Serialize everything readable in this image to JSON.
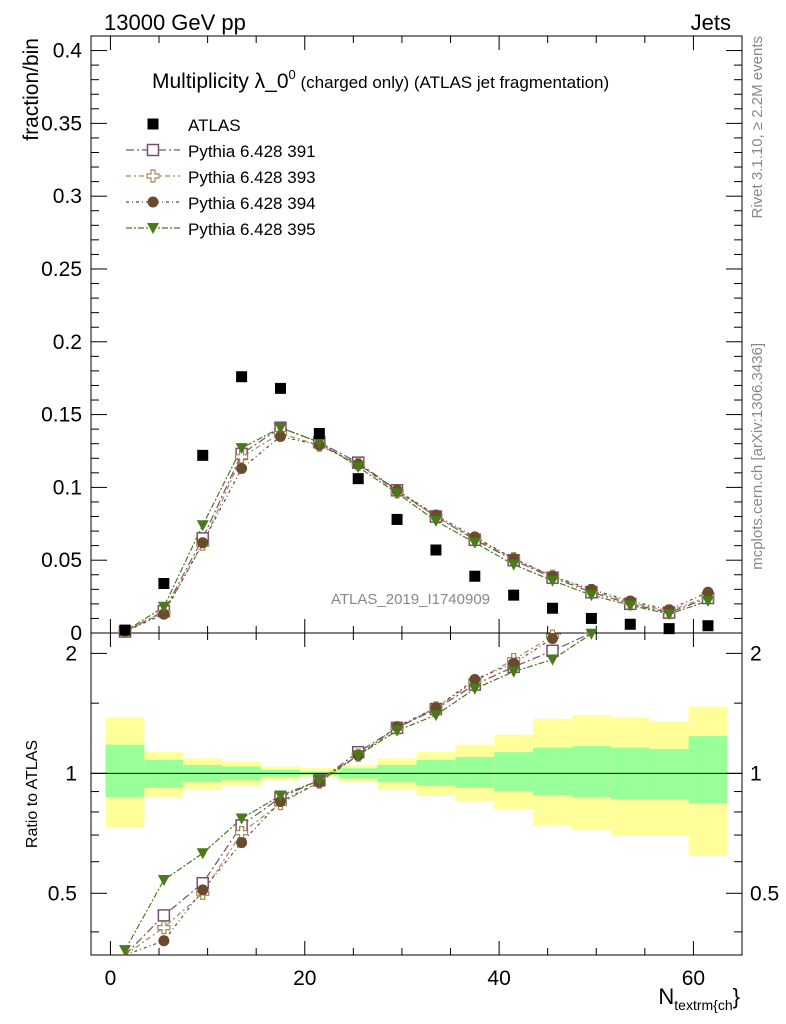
{
  "header": {
    "left": "13000 GeV pp",
    "right": "Jets"
  },
  "side_text": {
    "rivet": "Rivet 3.1.10, ≥ 2.2M events",
    "mcplots": "mcplots.cern.ch [arXiv:1306.3436]"
  },
  "watermark": "ATLAS_2019_I1740909",
  "colors": {
    "data": "#000000",
    "p391": "#7b4f6a",
    "p393": "#9c8a5a",
    "p394": "#6b4a2e",
    "p395": "#4a7a1a",
    "band_inner": "#99ff99",
    "band_outer": "#ffff99"
  },
  "chart_data": {
    "type": "scatter",
    "title_main": "Multiplicity λ_0",
    "title_sup": "0",
    "title_rest": " (charged only) (ATLAS jet fragmentation)",
    "xlabel_main": "N",
    "xlabel_sub": "textrm{ch",
    "xlabel_close": "}",
    "ylabel": "fraction/bin",
    "ratio_ylabel": "Ratio to ATLAS",
    "xlim": [
      -2,
      65
    ],
    "ylim": [
      0,
      0.41
    ],
    "ratio_ylim": [
      0.35,
      2.25
    ],
    "xticks": [
      0,
      20,
      40,
      60
    ],
    "yticks": [
      0,
      0.05,
      0.1,
      0.15,
      0.2,
      0.25,
      0.3,
      0.35,
      0.4
    ],
    "ytick_labels": [
      "0",
      "0.05",
      "0.1",
      "0.15",
      "0.2",
      "0.25",
      "0.3",
      "0.35",
      "0.4"
    ],
    "ratio_yticks": [
      0.5,
      1,
      2
    ],
    "ratio_ytick_labels": [
      "0.5",
      "1",
      "2"
    ],
    "x": [
      1.5,
      5.5,
      9.5,
      13.5,
      17.5,
      21.5,
      25.5,
      29.5,
      33.5,
      37.5,
      41.5,
      45.5,
      49.5,
      53.5,
      57.5,
      61.5
    ],
    "bin_edges": [
      -0.5,
      3.5,
      7.5,
      11.5,
      15.5,
      19.5,
      23.5,
      27.5,
      31.5,
      35.5,
      39.5,
      43.5,
      47.5,
      51.5,
      55.5,
      59.5,
      63.5
    ],
    "data": {
      "name": "ATLAS",
      "values": [
        0.002,
        0.034,
        0.122,
        0.176,
        0.168,
        0.137,
        0.106,
        0.078,
        0.057,
        0.039,
        0.026,
        0.017,
        0.01,
        0.006,
        0.003,
        0.005
      ]
    },
    "series": [
      {
        "name": "Pythia 6.428 391",
        "marker": "open-square",
        "color": "#7b4f6a",
        "values": [
          0.001,
          0.015,
          0.065,
          0.123,
          0.141,
          0.131,
          0.117,
          0.098,
          0.08,
          0.064,
          0.05,
          0.038,
          0.028,
          0.02,
          0.014,
          0.024
        ]
      },
      {
        "name": "Pythia 6.428 393",
        "marker": "open-cross",
        "color": "#9c8a5a",
        "values": [
          0.001,
          0.014,
          0.061,
          0.121,
          0.137,
          0.129,
          0.116,
          0.097,
          0.08,
          0.065,
          0.051,
          0.039,
          0.029,
          0.021,
          0.015,
          0.025
        ]
      },
      {
        "name": "Pythia 6.428 394",
        "marker": "filled-circle",
        "color": "#6b4a2e",
        "values": [
          0.001,
          0.013,
          0.062,
          0.113,
          0.135,
          0.129,
          0.116,
          0.098,
          0.081,
          0.066,
          0.051,
          0.039,
          0.03,
          0.022,
          0.016,
          0.028
        ]
      },
      {
        "name": "Pythia 6.428 395",
        "marker": "filled-triangle-down",
        "color": "#4a7a1a",
        "values": [
          0.001,
          0.018,
          0.074,
          0.127,
          0.141,
          0.131,
          0.114,
          0.096,
          0.077,
          0.062,
          0.047,
          0.036,
          0.026,
          0.019,
          0.013,
          0.022
        ]
      }
    ],
    "ratio_series": [
      {
        "name": "Pythia 6.428 391",
        "values": [
          0.33,
          0.44,
          0.53,
          0.74,
          0.87,
          0.96,
          1.13,
          1.3,
          1.45,
          1.67,
          1.85,
          2.03,
          2.3,
          null,
          null,
          null
        ]
      },
      {
        "name": "Pythia 6.428 393",
        "values": [
          0.3,
          0.41,
          0.5,
          0.71,
          0.84,
          0.95,
          1.11,
          1.3,
          1.46,
          1.7,
          1.93,
          2.21,
          null,
          null,
          null,
          null
        ]
      },
      {
        "name": "Pythia 6.428 394",
        "values": [
          0.3,
          0.38,
          0.51,
          0.67,
          0.85,
          0.95,
          1.11,
          1.31,
          1.46,
          1.72,
          1.89,
          2.18,
          null,
          null,
          null,
          null
        ]
      },
      {
        "name": "Pythia 6.428 395",
        "values": [
          0.36,
          0.54,
          0.63,
          0.77,
          0.88,
          0.96,
          1.11,
          1.28,
          1.4,
          1.63,
          1.8,
          1.93,
          2.24,
          null,
          null,
          null
        ]
      }
    ],
    "band": {
      "inner_lo": [
        0.87,
        0.92,
        0.95,
        0.96,
        0.98,
        0.99,
        0.97,
        0.95,
        0.93,
        0.92,
        0.9,
        0.88,
        0.87,
        0.86,
        0.86,
        0.84
      ],
      "inner_hi": [
        1.18,
        1.08,
        1.05,
        1.04,
        1.02,
        1.01,
        1.03,
        1.05,
        1.08,
        1.1,
        1.13,
        1.16,
        1.17,
        1.16,
        1.15,
        1.24
      ],
      "outer_lo": [
        0.73,
        0.87,
        0.91,
        0.93,
        0.96,
        0.98,
        0.95,
        0.91,
        0.88,
        0.85,
        0.81,
        0.74,
        0.72,
        0.7,
        0.7,
        0.62
      ],
      "outer_hi": [
        1.38,
        1.13,
        1.09,
        1.07,
        1.04,
        1.03,
        1.05,
        1.09,
        1.13,
        1.18,
        1.25,
        1.37,
        1.4,
        1.38,
        1.35,
        1.47
      ]
    },
    "legend_position": "top-left",
    "grid": false
  }
}
